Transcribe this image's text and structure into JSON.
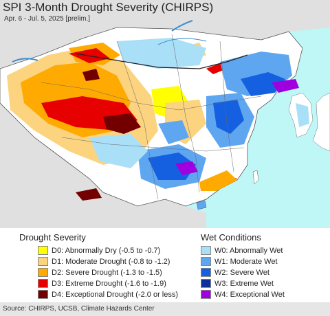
{
  "header": {
    "title": "SPI 3-Month Drought Severity (CHIRPS)",
    "subtitle": "Apr. 6 - Jul. 5, 2025 [prelim.]"
  },
  "legend": {
    "drought": {
      "heading": "Drought Severity",
      "items": [
        {
          "label": "D0: Abnormally Dry (-0.5 to -0.7)",
          "color": "#ffff00"
        },
        {
          "label": "D1: Moderate Drought (-0.8 to -1.2)",
          "color": "#fcd37f"
        },
        {
          "label": "D2: Severe Drought (-1.3 to -1.5)",
          "color": "#ffaa00"
        },
        {
          "label": "D3: Extreme Drought (-1.6 to -1.9)",
          "color": "#e60000"
        },
        {
          "label": "D4: Exceptional Drought (-2.0 or less)",
          "color": "#730000"
        }
      ]
    },
    "wet": {
      "heading": "Wet Conditions",
      "items": [
        {
          "label": "W0: Abnormally Wet",
          "color": "#aadff8"
        },
        {
          "label": "W1: Moderate Wet",
          "color": "#5fa6f0"
        },
        {
          "label": "W2: Severe Wet",
          "color": "#1560e0"
        },
        {
          "label": "W3: Extreme Wet",
          "color": "#0a2f9a"
        },
        {
          "label": "W4: Exceptional Wet",
          "color": "#a000e0"
        }
      ]
    }
  },
  "map": {
    "ocean_color": "#bff6f6",
    "land_color": "#ffffff",
    "outside_color": "#e0e0e0"
  },
  "footer": {
    "source": "Source: CHIRPS, UCSB, Climate Hazards Center"
  }
}
